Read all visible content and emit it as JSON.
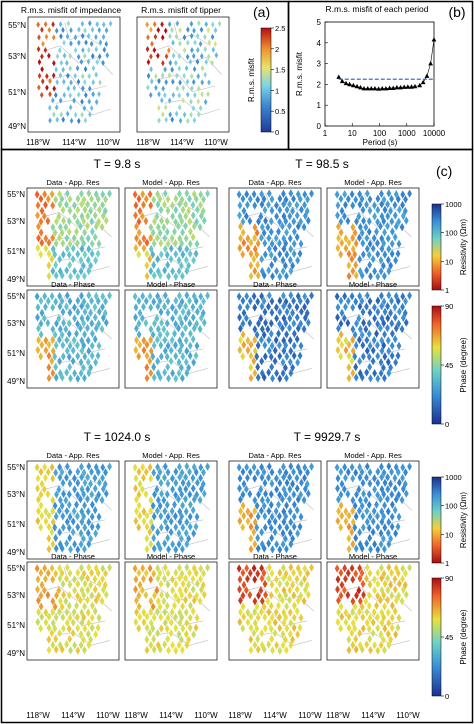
{
  "panels": {
    "a": {
      "label": "(a)",
      "titles": [
        "R.m.s. misfit of impedance",
        "R.m.s. misfit of tipper"
      ],
      "colorbar": {
        "label": "R.m.s. misfit",
        "ticks": [
          "0",
          "0.5",
          "1",
          "1.5",
          "2",
          "2.5"
        ],
        "colors": [
          "#1f3b99",
          "#3a86d1",
          "#7fd4e8",
          "#e9e46a",
          "#f0902e",
          "#b30f12"
        ]
      }
    },
    "b": {
      "label": "(b)",
      "chart_data": {
        "type": "line",
        "title": "R.m.s. misfit of each period",
        "xlabel": "Period (s)",
        "ylabel": "R.m.s. misfit",
        "xscale": "log",
        "xlim": [
          1,
          10000
        ],
        "ylim": [
          0,
          5
        ],
        "xticks": [
          "1",
          "10",
          "100",
          "1000",
          "10000"
        ],
        "yticks": [
          "0",
          "1",
          "2",
          "3",
          "4",
          "5"
        ],
        "series": [
          {
            "type": "markers",
            "x": [
              3.2,
              4.3,
              5.9,
              8,
              11,
              15,
              20,
              27,
              37,
              50,
              68,
              93,
              126,
              172,
              234,
              319,
              434,
              591,
              805,
              1096,
              1493,
              2000,
              3000,
              4000,
              5500,
              7500,
              10000
            ],
            "y": [
              2.35,
              2.15,
              2.05,
              2.0,
              1.95,
              1.9,
              1.85,
              1.8,
              1.8,
              1.8,
              1.8,
              1.78,
              1.8,
              1.8,
              1.82,
              1.82,
              1.85,
              1.85,
              1.87,
              1.88,
              1.88,
              1.9,
              1.95,
              2.1,
              2.4,
              3.0,
              4.15
            ]
          },
          {
            "type": "dashed",
            "x": [
              3.2,
              10000
            ],
            "y": [
              2.25,
              2.25
            ]
          }
        ]
      }
    },
    "c": {
      "label": "(c)",
      "periods": [
        "T = 9.8 s",
        "T = 98.5 s",
        "T = 1024.0 s",
        "T = 9929.7 s"
      ],
      "map_titles": [
        "Data - App. Res",
        "Model - App. Res",
        "Data - Phase",
        "Model - Phase"
      ],
      "res_bar": {
        "label": "Resistivity (Ωm)",
        "ticks": [
          "1",
          "10",
          "100",
          "1000"
        ]
      },
      "phase_bar": {
        "label": "Phase (degree)",
        "ticks": [
          "0",
          "45",
          "90"
        ]
      },
      "lat_ticks": [
        "55°N",
        "53°N",
        "51°N",
        "49°N"
      ],
      "lon_ticks": [
        "118°W",
        "114°W",
        "110°W"
      ]
    }
  }
}
